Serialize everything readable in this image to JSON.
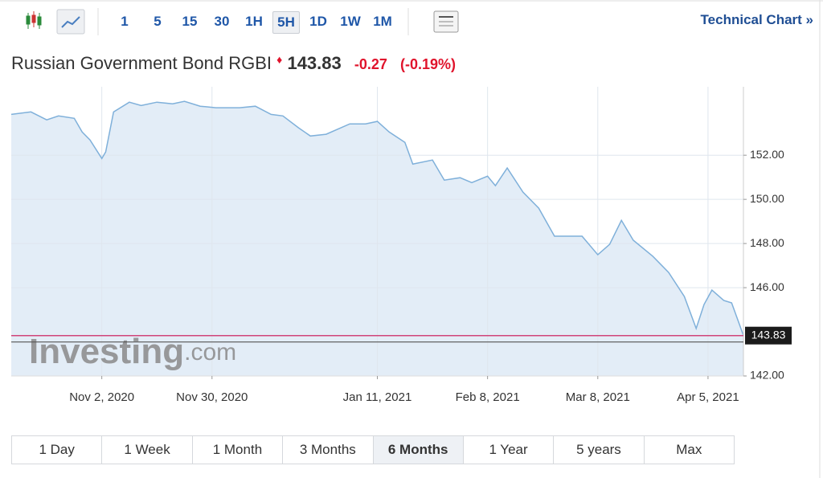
{
  "toolbar": {
    "intervals": [
      "1",
      "5",
      "15",
      "30",
      "1H",
      "5H",
      "1D",
      "1W",
      "1M"
    ],
    "active_interval": "5H",
    "technical_chart": "Technical Chart »"
  },
  "header": {
    "name": "Russian Government Bond RGBI",
    "change_pct": "(-0.19%)"
  },
  "watermark": {
    "brand": "Investing",
    "suffix": ".com"
  },
  "ranges": {
    "items": [
      "1 Day",
      "1 Week",
      "1 Month",
      "3 Months",
      "6 Months",
      "1 Year",
      "5 years",
      "Max"
    ],
    "active": "6 Months"
  },
  "chart_data": {
    "type": "area",
    "last_value": 143.83,
    "change": -0.27,
    "color": "#7fb0da",
    "fill": "#e3edf7",
    "last_line_color": "#d0457a",
    "x": [
      "2020-10-10",
      "2020-10-15",
      "2020-10-19",
      "2020-10-22",
      "2020-10-26",
      "2020-10-28",
      "2020-10-30",
      "2020-11-02",
      "2020-11-03",
      "2020-11-05",
      "2020-11-09",
      "2020-11-12",
      "2020-11-16",
      "2020-11-20",
      "2020-11-23",
      "2020-11-27",
      "2020-12-01",
      "2020-12-07",
      "2020-12-11",
      "2020-12-15",
      "2020-12-18",
      "2020-12-22",
      "2020-12-25",
      "2020-12-29",
      "2021-01-04",
      "2021-01-08",
      "2021-01-11",
      "2021-01-14",
      "2021-01-18",
      "2021-01-20",
      "2021-01-25",
      "2021-01-28",
      "2021-02-01",
      "2021-02-04",
      "2021-02-08",
      "2021-02-10",
      "2021-02-13",
      "2021-02-17",
      "2021-02-21",
      "2021-02-25",
      "2021-03-01",
      "2021-03-04",
      "2021-03-08",
      "2021-03-11",
      "2021-03-14",
      "2021-03-17",
      "2021-03-22",
      "2021-03-26",
      "2021-03-30",
      "2021-04-02",
      "2021-04-04",
      "2021-04-06",
      "2021-04-09",
      "2021-04-11",
      "2021-04-13",
      "2021-04-14"
    ],
    "values": [
      153.85,
      153.96,
      153.6,
      153.78,
      153.67,
      153.05,
      152.69,
      151.85,
      152.15,
      153.96,
      154.4,
      154.25,
      154.4,
      154.33,
      154.44,
      154.22,
      154.15,
      154.15,
      154.22,
      153.85,
      153.78,
      153.24,
      152.87,
      152.95,
      153.42,
      153.42,
      153.53,
      153.05,
      152.58,
      151.6,
      151.78,
      150.87,
      150.98,
      150.76,
      151.05,
      150.62,
      151.42,
      150.33,
      149.6,
      148.33,
      148.33,
      148.33,
      147.49,
      147.96,
      149.05,
      148.15,
      147.42,
      146.69,
      145.6,
      144.15,
      145.24,
      145.89,
      145.42,
      145.31,
      144.33,
      143.83
    ],
    "xlim": [
      "2020-10-10",
      "2021-04-14"
    ],
    "xticks": [
      {
        "value": "2020-11-02",
        "label": "Nov 2, 2020"
      },
      {
        "value": "2020-11-30",
        "label": "Nov 30, 2020"
      },
      {
        "value": "2021-01-11",
        "label": "Jan 11, 2021"
      },
      {
        "value": "2021-02-08",
        "label": "Feb 8, 2021"
      },
      {
        "value": "2021-03-08",
        "label": "Mar 8, 2021"
      },
      {
        "value": "2021-04-05",
        "label": "Apr 5, 2021"
      }
    ],
    "ylim": [
      142,
      155.1
    ],
    "yticks": [
      {
        "value": 142,
        "label": "142.00"
      },
      {
        "value": 146,
        "label": "146.00"
      },
      {
        "value": 148,
        "label": "148.00"
      },
      {
        "value": 150,
        "label": "150.00"
      },
      {
        "value": 152,
        "label": "152.00"
      }
    ],
    "grid": true
  }
}
